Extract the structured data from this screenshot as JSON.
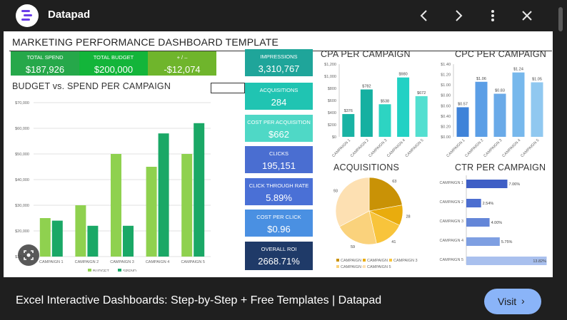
{
  "site_name": "Datapad",
  "caption": "Excel Interactive Dashboards: Step-by-Step + Free Templates | Datapad",
  "visit_label": "Visit",
  "visit_chevron": "›",
  "icons": {
    "back": "chevron-left-icon",
    "forward": "chevron-right-icon",
    "more": "more-vert-icon",
    "close": "close-icon",
    "lens": "lens-icon"
  },
  "colors": {
    "green_dark": "#26a84a",
    "green": "#13b53a",
    "olive": "#6fb52c",
    "teal_dark": "#1fa59a",
    "teal": "#20c4b2",
    "teal_light": "#4fd8c6",
    "blue": "#4a6ed1",
    "blue_mid": "#4a90e2",
    "navy": "#1f3a68"
  },
  "dashboard": {
    "title": "MARKETING PERFORMANCE DASHBOARD TEMPLATE",
    "kpis": [
      {
        "label": "TOTAL SPEND",
        "value": "$187,926"
      },
      {
        "label": "TOTAL BUDGET",
        "value": "$200,000"
      },
      {
        "label": "+ / –",
        "value": "-$12,074"
      }
    ],
    "metrics": [
      {
        "label": "IMPRESSIONS",
        "value": "3,310,767"
      },
      {
        "label": "ACQUISITIONS",
        "value": "284"
      },
      {
        "label": "COST PER ACQUISITION",
        "value": "$662"
      },
      {
        "label": "CLICKS",
        "value": "195,151"
      },
      {
        "label": "CLICK THROUGH RATE",
        "value": "5.89%"
      },
      {
        "label": "COST PER CLICK",
        "value": "$0.96"
      },
      {
        "label": "OVERALL ROI",
        "value": "2668.71%"
      }
    ],
    "budget_title": "BUDGET vs. SPEND PER CAMPAIGN",
    "cpa_title": "CPA PER CAMPAIGN",
    "cpc_title": "CPC PER CAMPAIGN",
    "acq_title": "ACQUISITIONS",
    "ctr_title": "CTR PER CAMPAIGN"
  },
  "chart_data": [
    {
      "type": "bar",
      "title": "BUDGET vs. SPEND PER CAMPAIGN",
      "categories": [
        "CAMPAIGN 1",
        "CAMPAIGN 2",
        "CAMPAIGN 3",
        "CAMPAIGN 4",
        "CAMPAIGN 5"
      ],
      "series": [
        {
          "name": "BUDGET",
          "values": [
            25000,
            30000,
            50000,
            45000,
            50000
          ],
          "color": "#8fd14f"
        },
        {
          "name": "SPEND",
          "values": [
            24000,
            22000,
            22000,
            58000,
            62000
          ],
          "color": "#1aa866"
        }
      ],
      "ylim": [
        10000,
        70000
      ],
      "yticks": [
        "$10,000",
        "$20,000",
        "$30,000",
        "$40,000",
        "$50,000",
        "$60,000",
        "$70,000"
      ],
      "legend": "bottom"
    },
    {
      "type": "bar",
      "title": "CPA PER CAMPAIGN",
      "categories": [
        "CAMPAIGN 1",
        "CAMPAIGN 2",
        "CAMPAIGN 3",
        "CAMPAIGN 4",
        "CAMPAIGN 5"
      ],
      "values": [
        376,
        782,
        538,
        980,
        672
      ],
      "labels": [
        "$376",
        "$782",
        "$538",
        "$980",
        "$672"
      ],
      "ylim": [
        0,
        1200
      ],
      "yticks": [
        "$0",
        "$200",
        "$400",
        "$600",
        "$800",
        "$1,000",
        "$1,200"
      ]
    },
    {
      "type": "bar",
      "title": "CPC PER CAMPAIGN",
      "categories": [
        "CAMPAIGN 1",
        "CAMPAIGN 2",
        "CAMPAIGN 3",
        "CAMPAIGN 4",
        "CAMPAIGN 5"
      ],
      "values": [
        0.57,
        1.06,
        0.83,
        1.24,
        1.05
      ],
      "labels": [
        "$0.57",
        "$1.06",
        "$0.83",
        "$1.24",
        "$1.05"
      ],
      "ylim": [
        0,
        1.4
      ],
      "yticks": [
        "$0.00",
        "$0.20",
        "$0.40",
        "$0.60",
        "$0.80",
        "$1.00",
        "$1.20",
        "$1.40"
      ]
    },
    {
      "type": "pie",
      "title": "ACQUISITIONS",
      "categories": [
        "CAMPAIGN 1",
        "CAMPAIGN 2",
        "CAMPAIGN 3",
        "CAMPAIGN 4",
        "CAMPAIGN 5"
      ],
      "values": [
        63,
        28,
        41,
        59,
        93
      ],
      "colors": [
        "#c99206",
        "#e9ac0d",
        "#f8c43b",
        "#fad27c",
        "#fde0b2"
      ],
      "legend": "bottom"
    },
    {
      "type": "bar",
      "orientation": "horizontal",
      "title": "CTR PER CAMPAIGN",
      "categories": [
        "CAMPAIGN 1",
        "CAMPAIGN 2",
        "CAMPAIGN 3",
        "CAMPAIGN 4",
        "CAMPAIGN 5"
      ],
      "values": [
        7.06,
        2.54,
        4.0,
        5.75,
        13.82
      ],
      "labels": [
        "7.06%",
        "2.54%",
        "4.00%",
        "5.75%",
        "13.82%"
      ],
      "xlim": [
        0,
        14
      ]
    }
  ]
}
